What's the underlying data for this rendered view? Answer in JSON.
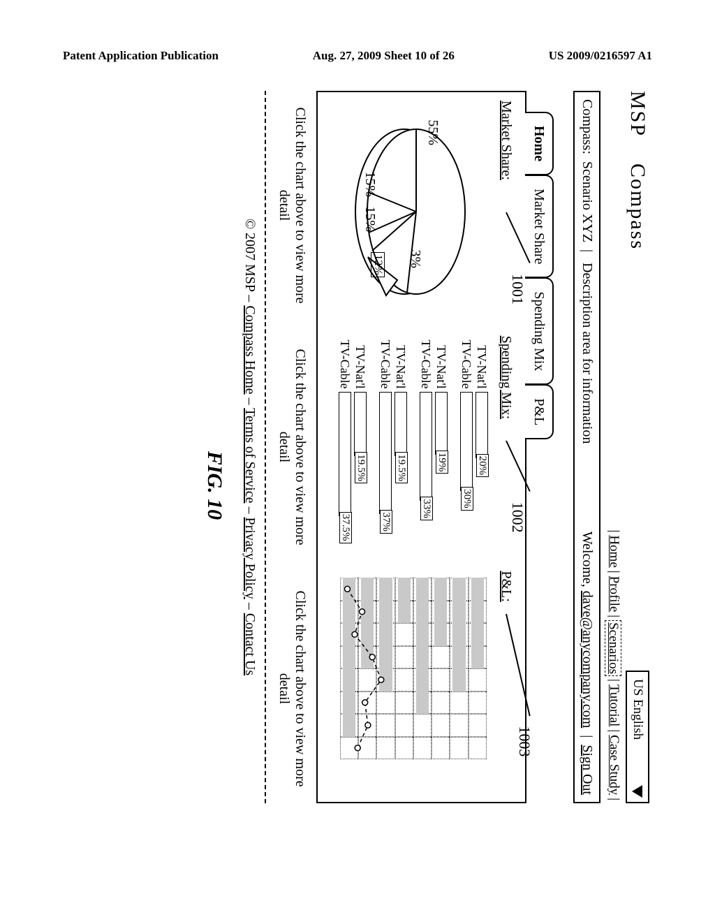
{
  "header": {
    "left": "Patent Application Publication",
    "center": "Aug. 27, 2009  Sheet 10 of 26",
    "right": "US 2009/0216597 A1"
  },
  "app": {
    "brand": "MSP",
    "name": "Compass",
    "language": "US English"
  },
  "nav": {
    "items": [
      "Home",
      "Profile",
      "Scenarios",
      "Tutorial",
      "Case Study"
    ],
    "current_index": 2
  },
  "description": {
    "prefix": "Compass:",
    "scenario": "Scenario XYZ",
    "desc_label": "Description area for information"
  },
  "welcome": {
    "prefix": "Welcome,",
    "email": "dave@anycompany.com",
    "signout": "Sign Out"
  },
  "tabs": {
    "items": [
      "Home",
      "Market Share",
      "Spending Mix",
      "P&L"
    ],
    "active_index": 0
  },
  "panels": {
    "market_share": {
      "label": "Market Share:",
      "callout": "1001",
      "pie": {
        "slices": [
          {
            "label": "55%",
            "value": 55
          },
          {
            "label": "15%",
            "value": 15
          },
          {
            "label": "15%",
            "value": 15
          },
          {
            "label": "3%",
            "value": 3
          },
          {
            "label": "12%",
            "value": 12
          }
        ],
        "stroke": "#000000",
        "fill": "#ffffff"
      }
    },
    "spending_mix": {
      "label": "Spending Mix:",
      "callout": "1002",
      "groups": [
        {
          "rows": [
            {
              "lbl": "TV-Nat'l",
              "pct": 20,
              "txt": "20%"
            },
            {
              "lbl": "TV-Cable",
              "pct": 30,
              "txt": "30%"
            }
          ]
        },
        {
          "rows": [
            {
              "lbl": "TV-Nat'l",
              "pct": 19,
              "txt": "19%"
            },
            {
              "lbl": "TV-Cable",
              "pct": 33,
              "txt": "33%"
            }
          ]
        },
        {
          "rows": [
            {
              "lbl": "TV-Nat'l",
              "pct": 19.5,
              "txt": "19.5%"
            },
            {
              "lbl": "TV-Cable",
              "pct": 37,
              "txt": "37%"
            }
          ]
        },
        {
          "rows": [
            {
              "lbl": "TV-Nat'l",
              "pct": 19.5,
              "txt": "19.5%"
            },
            {
              "lbl": "TV-Cable",
              "pct": 37.5,
              "txt": "37.5%"
            }
          ]
        }
      ],
      "max_pct": 40
    },
    "pnl": {
      "label": "P&L:",
      "callout": "1003",
      "grid": {
        "rows": 8,
        "cols": 8,
        "bar_rows": [
          0,
          1,
          2,
          3,
          4,
          5,
          6,
          7
        ],
        "bar_widths": [
          4,
          5,
          3,
          6,
          2,
          5,
          4,
          7
        ]
      },
      "line": {
        "points": [
          0.05,
          0.15,
          0.1,
          0.22,
          0.28,
          0.17,
          0.19,
          0.12
        ]
      }
    }
  },
  "click_text": "Click the chart above to view more detail",
  "footer": {
    "copyright": "© 2007 MSP –",
    "links": [
      "Compass Home",
      "Terms of Service",
      "Privacy Policy",
      "Contact Us"
    ]
  },
  "figure_label": "FIG. 10"
}
